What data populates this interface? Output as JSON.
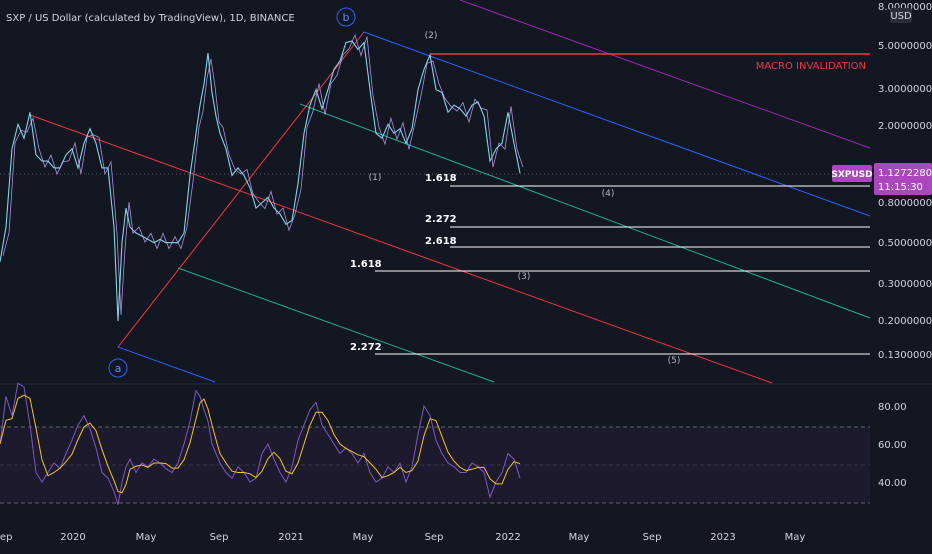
{
  "chart_data": {
    "type": "line",
    "title": "SXP / US Dollar (calculated by TradingView), 1D, BINANCE",
    "currency": "USD",
    "symbol": "SXPUSD",
    "last_price": "1.12722808",
    "countdown": "11:15:30",
    "y_ticks": [
      "8.00000000",
      "5.00000000",
      "3.00000000",
      "2.00000000",
      "0.80000000",
      "0.50000000",
      "0.30000000",
      "0.20000000",
      "0.13000000"
    ],
    "y_tick_values": [
      8.0,
      5.0,
      3.0,
      2.0,
      0.8,
      0.5,
      0.3,
      0.2,
      0.13
    ],
    "x_ticks": [
      "Sep",
      "2020",
      "May",
      "Sep",
      "2021",
      "May",
      "Sep",
      "2022",
      "May",
      "Sep",
      "2023",
      "May"
    ],
    "macro_label": "MACRO INVALIDATION",
    "macro_price": 4.55,
    "waves": {
      "a": "a",
      "b": "b",
      "w1": "(1)",
      "w2": "(2)",
      "w3": "(3)",
      "w4": "(4)",
      "w5": "(5)"
    },
    "fib_levels": [
      {
        "label": "1.618",
        "price": 0.9
      },
      {
        "label": "2.272",
        "price": 0.62
      },
      {
        "label": "2.618",
        "price": 0.48
      },
      {
        "label": "1.618",
        "price": 0.35
      },
      {
        "label": "2.272",
        "price": 0.12
      }
    ],
    "price_path": [
      [
        0,
        0.4
      ],
      [
        6,
        0.6
      ],
      [
        12,
        1.5
      ],
      [
        18,
        2.0
      ],
      [
        24,
        1.7
      ],
      [
        30,
        2.3
      ],
      [
        36,
        1.4
      ],
      [
        42,
        1.3
      ],
      [
        48,
        1.3
      ],
      [
        54,
        1.2
      ],
      [
        60,
        1.2
      ],
      [
        66,
        1.4
      ],
      [
        72,
        1.5
      ],
      [
        78,
        1.2
      ],
      [
        84,
        1.6
      ],
      [
        90,
        1.9
      ],
      [
        96,
        1.6
      ],
      [
        102,
        1.2
      ],
      [
        108,
        1.2
      ],
      [
        114,
        0.6
      ],
      [
        118,
        0.2
      ],
      [
        122,
        0.5
      ],
      [
        126,
        0.75
      ],
      [
        130,
        0.6
      ],
      [
        136,
        0.56
      ],
      [
        142,
        0.54
      ],
      [
        148,
        0.52
      ],
      [
        154,
        0.5
      ],
      [
        160,
        0.52
      ],
      [
        166,
        0.5
      ],
      [
        172,
        0.5
      ],
      [
        178,
        0.5
      ],
      [
        184,
        0.56
      ],
      [
        190,
        1.1
      ],
      [
        196,
        1.8
      ],
      [
        200,
        2.5
      ],
      [
        204,
        3.2
      ],
      [
        208,
        4.6
      ],
      [
        212,
        2.9
      ],
      [
        216,
        2.2
      ],
      [
        220,
        1.8
      ],
      [
        226,
        1.5
      ],
      [
        232,
        1.1
      ],
      [
        238,
        1.2
      ],
      [
        244,
        1.1
      ],
      [
        250,
        0.95
      ],
      [
        256,
        0.75
      ],
      [
        262,
        0.8
      ],
      [
        268,
        0.85
      ],
      [
        274,
        0.75
      ],
      [
        280,
        0.7
      ],
      [
        286,
        0.62
      ],
      [
        292,
        0.65
      ],
      [
        298,
        1.0
      ],
      [
        304,
        1.8
      ],
      [
        310,
        2.5
      ],
      [
        316,
        3.0
      ],
      [
        322,
        2.4
      ],
      [
        328,
        3.0
      ],
      [
        334,
        3.8
      ],
      [
        340,
        4.2
      ],
      [
        346,
        5.2
      ],
      [
        352,
        5.3
      ],
      [
        358,
        4.8
      ],
      [
        364,
        5.2
      ],
      [
        370,
        3.0
      ],
      [
        376,
        1.8
      ],
      [
        382,
        1.7
      ],
      [
        388,
        2.0
      ],
      [
        394,
        1.8
      ],
      [
        400,
        1.9
      ],
      [
        406,
        1.6
      ],
      [
        412,
        1.9
      ],
      [
        418,
        3.0
      ],
      [
        424,
        3.8
      ],
      [
        430,
        4.5
      ],
      [
        436,
        3.0
      ],
      [
        442,
        2.9
      ],
      [
        448,
        2.3
      ],
      [
        454,
        2.5
      ],
      [
        460,
        2.4
      ],
      [
        466,
        2.2
      ],
      [
        472,
        2.5
      ],
      [
        478,
        2.6
      ],
      [
        484,
        2.2
      ],
      [
        490,
        1.3
      ],
      [
        496,
        1.5
      ],
      [
        502,
        1.6
      ],
      [
        508,
        2.3
      ],
      [
        514,
        1.6
      ],
      [
        520,
        1.13
      ]
    ],
    "rsi_ticks": [
      "80.00",
      "60.00",
      "40.00"
    ],
    "rsi_tick_values": [
      80,
      60,
      40
    ],
    "rsi_band": [
      70,
      30
    ],
    "rsi_mid": 50,
    "rsi_path": [
      [
        0,
        60
      ],
      [
        6,
        85
      ],
      [
        12,
        75
      ],
      [
        18,
        92
      ],
      [
        24,
        90
      ],
      [
        30,
        70
      ],
      [
        36,
        45
      ],
      [
        42,
        40
      ],
      [
        48,
        45
      ],
      [
        54,
        50
      ],
      [
        60,
        47
      ],
      [
        66,
        55
      ],
      [
        72,
        62
      ],
      [
        78,
        70
      ],
      [
        84,
        75
      ],
      [
        90,
        68
      ],
      [
        96,
        58
      ],
      [
        102,
        45
      ],
      [
        108,
        42
      ],
      [
        114,
        35
      ],
      [
        118,
        28
      ],
      [
        122,
        40
      ],
      [
        126,
        48
      ],
      [
        130,
        52
      ],
      [
        136,
        45
      ],
      [
        142,
        50
      ],
      [
        148,
        48
      ],
      [
        154,
        52
      ],
      [
        160,
        50
      ],
      [
        166,
        47
      ],
      [
        172,
        45
      ],
      [
        178,
        50
      ],
      [
        184,
        60
      ],
      [
        190,
        72
      ],
      [
        196,
        88
      ],
      [
        200,
        85
      ],
      [
        204,
        78
      ],
      [
        208,
        72
      ],
      [
        212,
        60
      ],
      [
        216,
        55
      ],
      [
        220,
        50
      ],
      [
        226,
        45
      ],
      [
        232,
        42
      ],
      [
        238,
        48
      ],
      [
        244,
        45
      ],
      [
        250,
        40
      ],
      [
        256,
        42
      ],
      [
        262,
        55
      ],
      [
        268,
        60
      ],
      [
        274,
        52
      ],
      [
        280,
        45
      ],
      [
        286,
        40
      ],
      [
        292,
        48
      ],
      [
        298,
        62
      ],
      [
        304,
        70
      ],
      [
        310,
        78
      ],
      [
        316,
        82
      ],
      [
        322,
        70
      ],
      [
        328,
        65
      ],
      [
        334,
        60
      ],
      [
        340,
        55
      ],
      [
        346,
        58
      ],
      [
        352,
        55
      ],
      [
        358,
        50
      ],
      [
        364,
        55
      ],
      [
        370,
        45
      ],
      [
        376,
        40
      ],
      [
        382,
        42
      ],
      [
        388,
        48
      ],
      [
        394,
        45
      ],
      [
        400,
        50
      ],
      [
        406,
        40
      ],
      [
        412,
        48
      ],
      [
        418,
        65
      ],
      [
        424,
        80
      ],
      [
        430,
        75
      ],
      [
        436,
        62
      ],
      [
        442,
        55
      ],
      [
        448,
        50
      ],
      [
        454,
        48
      ],
      [
        460,
        45
      ],
      [
        466,
        45
      ],
      [
        472,
        50
      ],
      [
        478,
        48
      ],
      [
        484,
        45
      ],
      [
        490,
        32
      ],
      [
        496,
        40
      ],
      [
        502,
        45
      ],
      [
        508,
        55
      ],
      [
        514,
        52
      ],
      [
        520,
        42
      ]
    ]
  }
}
